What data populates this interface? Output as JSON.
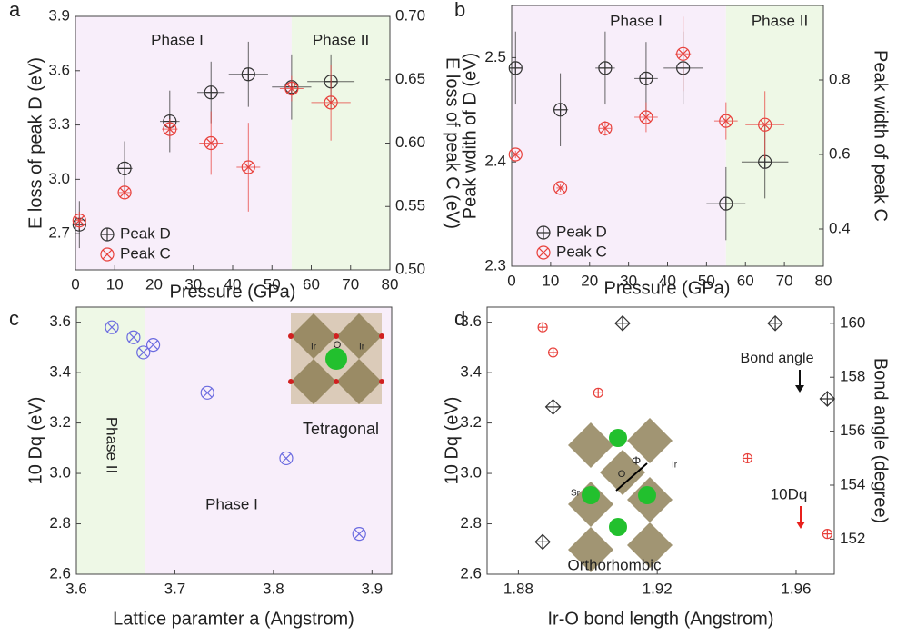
{
  "chart_data": [
    {
      "type": "scatter",
      "panel_label": "a",
      "xlabel": "Pressure (GPa)",
      "ylabel": "E loss of peak D (eV)",
      "y2label": "E loss of peak C (eV)",
      "xlim": [
        0,
        80
      ],
      "xticks": [
        0,
        10,
        20,
        30,
        40,
        50,
        60,
        70,
        80
      ],
      "ylim": [
        2.5,
        3.9
      ],
      "yticks": [
        2.7,
        {
          "value": 3,
          "label": "3.0"
        },
        3.3,
        3.6,
        3.9
      ],
      "y2lim": [
        0.5,
        0.7
      ],
      "y2ticks": [
        {
          "value": 0.5,
          "label": "0.50"
        },
        0.55,
        {
          "value": 0.6,
          "label": "0.60"
        },
        0.65,
        {
          "value": 0.7,
          "label": "0.70"
        }
      ],
      "regions": [
        {
          "label": "Phase I",
          "range": [
            0,
            55
          ],
          "color": "#f8eefa"
        },
        {
          "label": "Phase II",
          "range": [
            55,
            80
          ],
          "color": "#eef8e6"
        }
      ],
      "legend": "lower left",
      "series": [
        {
          "name": "Peak D",
          "color": "#333333",
          "marker": "circle-plus",
          "axis": "y",
          "x": [
            1,
            12.5,
            24,
            34.5,
            44,
            55,
            65
          ],
          "values": [
            2.75,
            3.06,
            3.32,
            3.48,
            3.58,
            3.51,
            3.54
          ],
          "xerr": [
            1,
            2,
            2.5,
            3.5,
            5,
            5,
            6
          ],
          "yerr": [
            0.13,
            0.15,
            0.17,
            0.17,
            0.18,
            0.18,
            0.15
          ]
        },
        {
          "name": "Peak C",
          "color": "#e8413c",
          "marker": "circle-x",
          "axis": "y2",
          "x": [
            1,
            12.5,
            24,
            34.5,
            44,
            55,
            65
          ],
          "values": [
            0.539,
            0.561,
            0.611,
            0.6,
            0.581,
            0.643,
            0.632
          ],
          "xerr": [
            1,
            1.5,
            2,
            3,
            3,
            3,
            5
          ],
          "yerr": [
            0.007,
            0.005,
            0.008,
            0.025,
            0.035,
            0.01,
            0.03
          ]
        }
      ]
    },
    {
      "type": "scatter",
      "panel_label": "b",
      "xlabel": "Pressure (GPa)",
      "ylabel": "Peak wdith of D (eV)",
      "y2label": "Peak width of peak C",
      "xlim": [
        0,
        80
      ],
      "xticks": [
        0,
        10,
        20,
        30,
        40,
        50,
        60,
        70,
        80
      ],
      "ylim": [
        2.3,
        2.55
      ],
      "yticks": [
        2.3,
        2.4,
        2.5
      ],
      "y2lim": [
        0.3,
        1.0
      ],
      "y2ticks": [
        0.4,
        0.6,
        0.8
      ],
      "regions": [
        {
          "label": "Phase I",
          "range": [
            0,
            55
          ],
          "color": "#f8eefa"
        },
        {
          "label": "Phase II",
          "range": [
            55,
            80
          ],
          "color": "#eef8e6"
        }
      ],
      "legend": "lower left",
      "series": [
        {
          "name": "Peak D",
          "color": "#333333",
          "marker": "circle-plus",
          "axis": "y",
          "x": [
            1,
            12.5,
            24,
            34.5,
            44,
            55,
            65
          ],
          "values": [
            2.49,
            2.45,
            2.49,
            2.48,
            2.49,
            2.36,
            2.4
          ],
          "xerr": [
            1,
            2,
            2.5,
            3,
            5,
            5,
            6
          ],
          "yerr": [
            0.035,
            0.035,
            0.035,
            0.035,
            0.035,
            0.035,
            0.035
          ]
        },
        {
          "name": "Peak C",
          "color": "#e8413c",
          "marker": "circle-x",
          "axis": "y2",
          "x": [
            1,
            12.5,
            24,
            34.5,
            44,
            55,
            65
          ],
          "values": [
            0.6,
            0.51,
            0.67,
            0.7,
            0.87,
            0.69,
            0.68
          ],
          "xerr": [
            1,
            1,
            1.5,
            3,
            2,
            3,
            5
          ],
          "yerr": [
            0.01,
            0.01,
            0.02,
            0.04,
            0.1,
            0.05,
            0.09
          ]
        }
      ]
    },
    {
      "type": "scatter",
      "panel_label": "c",
      "xlabel": "Lattice paramter a (Angstrom)",
      "ylabel": "10 Dq (eV)",
      "xlim": [
        3.6,
        3.92
      ],
      "xticks": [
        3.6,
        3.7,
        3.8,
        3.9
      ],
      "ylim": [
        2.6,
        3.66
      ],
      "yticks": [
        2.6,
        2.8,
        {
          "value": 3,
          "label": "3.0"
        },
        3.2,
        3.4,
        3.6
      ],
      "regions": [
        {
          "label": "Phase II",
          "range": [
            3.6,
            3.67
          ],
          "color": "#eef8e6"
        },
        {
          "label": "Phase I",
          "range": [
            3.67,
            3.92
          ],
          "color": "#f8eefa"
        }
      ],
      "annotations": [
        "Tetragonal",
        "Ir",
        "O",
        "Ir"
      ],
      "series": [
        {
          "color": "#6b6be0",
          "marker": "circle-x",
          "axis": "y",
          "x": [
            3.636,
            3.658,
            3.668,
            3.678,
            3.733,
            3.813,
            3.887
          ],
          "values": [
            3.58,
            3.54,
            3.48,
            3.51,
            3.32,
            3.06,
            2.76
          ]
        }
      ]
    },
    {
      "type": "scatter",
      "panel_label": "d",
      "xlabel": "Ir-O bond length (Angstrom)",
      "ylabel": "10 Dq (eV)",
      "y2label": "Bond angle (degree)",
      "xlim": [
        1.871,
        1.971
      ],
      "xticks": [
        1.88,
        1.92,
        1.96
      ],
      "ylim": [
        2.6,
        3.66
      ],
      "yticks": [
        2.6,
        2.8,
        {
          "value": 3,
          "label": "3.0"
        },
        3.2,
        3.4,
        3.6
      ],
      "y2lim": [
        150.7,
        160.6
      ],
      "y2ticks": [
        152,
        154,
        156,
        158,
        160
      ],
      "annotations": [
        "Bond angle",
        "10Dq",
        "Orthorhombic",
        "Sr",
        "O",
        "Ir",
        "Φ"
      ],
      "series": [
        {
          "color": "#e8413c",
          "marker": "small-circle-plus",
          "axis": "y",
          "x": [
            1.887,
            1.89,
            1.903,
            1.946,
            1.969
          ],
          "values": [
            3.58,
            3.48,
            3.32,
            3.06,
            2.76
          ]
        },
        {
          "color": "#333333",
          "marker": "diamond-plus",
          "axis": "y2",
          "x": [
            1.887,
            1.89,
            1.91,
            1.954,
            1.969
          ],
          "values": [
            151.9,
            156.9,
            160,
            160,
            157.2
          ]
        }
      ]
    }
  ]
}
